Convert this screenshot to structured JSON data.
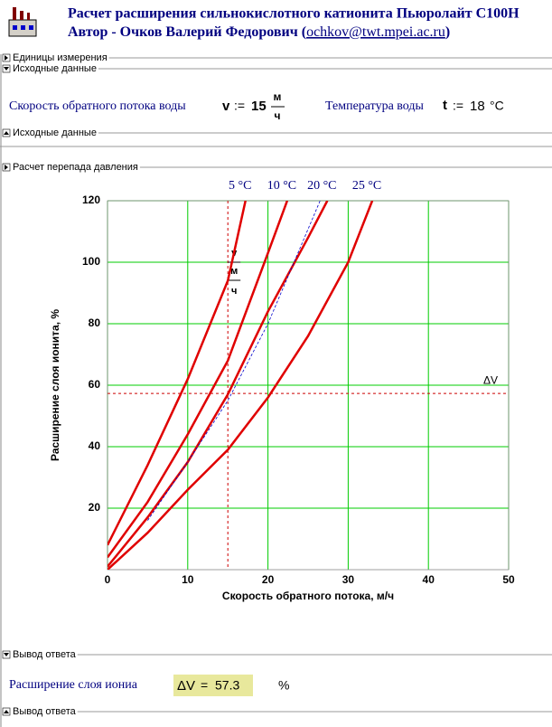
{
  "header": {
    "title": "Расчет расширения сильнокислотного катионита Пьюролайт С100Н",
    "author": "Автор - Очков Валерий Федорович (",
    "email": "ochkov@twt.mpei.ac.ru",
    "author_end": ")"
  },
  "regions": [
    "Единицы измерения",
    "Исходные данные",
    "Исходные данные",
    "Расчет перепада давления",
    "Вывод ответа",
    "Вывод ответа"
  ],
  "inputs": {
    "speed_label": "Скорость обратного потока воды",
    "speed_var": "v",
    "assign": ":=",
    "speed_value": "15",
    "speed_unit_top": "м",
    "speed_unit_bottom": "ч",
    "temp_label": "Температура воды",
    "temp_var": "t",
    "temp_assign": ":=",
    "temp_value": "18",
    "temp_unit": "°C"
  },
  "result": {
    "label": "Расширение слоя иониа",
    "var": "ΔV",
    "eq": "=",
    "value": "57.3",
    "unit": "%"
  },
  "chart_data": {
    "type": "line",
    "xlabel": "Скорость обратного потока, м/ч",
    "ylabel": "Расширение слоя ионита, %",
    "xlim": [
      0,
      50
    ],
    "ylim": [
      0,
      120
    ],
    "xticks": [
      0,
      10,
      20,
      30,
      40,
      50
    ],
    "yticks": [
      20,
      40,
      60,
      80,
      100,
      120
    ],
    "grid": true,
    "grid_color": "#00cc00",
    "series": [
      {
        "name": "5 °C",
        "color": "#e00000",
        "x": [
          0,
          5,
          10,
          15,
          17.2
        ],
        "values": [
          8,
          34,
          62,
          94,
          120
        ]
      },
      {
        "name": "10 °C",
        "color": "#e00000",
        "x": [
          0,
          5,
          10,
          15,
          20,
          22.4
        ],
        "values": [
          4,
          22,
          44,
          68,
          103,
          120
        ]
      },
      {
        "name": "20 °C",
        "color": "#e00000",
        "x": [
          0,
          5,
          10,
          15,
          20,
          25,
          27.4
        ],
        "values": [
          1,
          17,
          35,
          57,
          84,
          108,
          120
        ]
      },
      {
        "name": "25 °C",
        "color": "#e00000",
        "x": [
          0,
          5,
          10,
          15,
          20,
          25,
          30,
          33
        ],
        "values": [
          0,
          12,
          26,
          39,
          56,
          76,
          100,
          120
        ]
      },
      {
        "color": "#0000cc",
        "dashed": true,
        "x": [
          5,
          10,
          15,
          20,
          26.5
        ],
        "values": [
          16,
          35,
          55,
          80,
          120
        ]
      }
    ],
    "vline": 15,
    "hline": 57.3,
    "vline_color": "#cc0000",
    "vline_label": [
      "v",
      "м",
      "ч"
    ],
    "hline_label": "ΔV"
  }
}
